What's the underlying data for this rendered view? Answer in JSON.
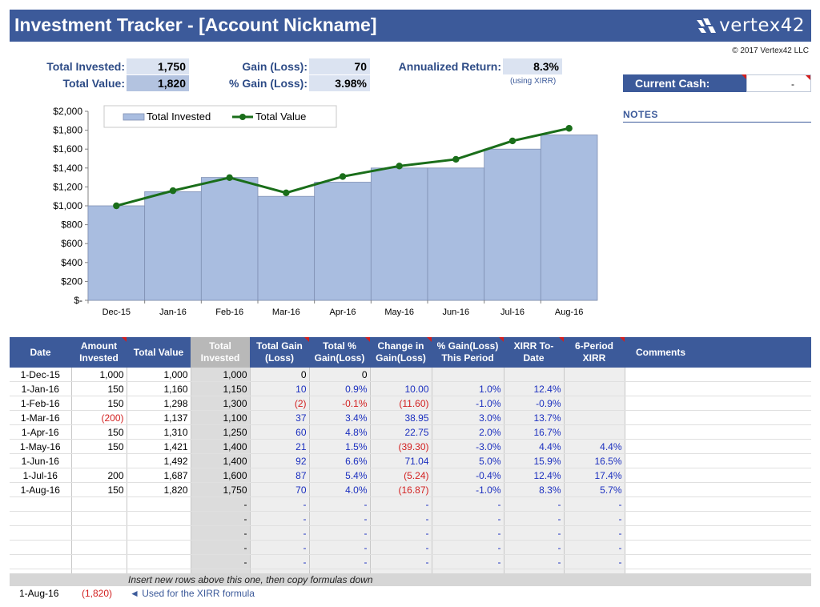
{
  "title": "Investment Tracker - [Account Nickname]",
  "logo": "vertex42",
  "copyright": "© 2017 Vertex42 LLC",
  "summary": {
    "total_invested_label": "Total Invested:",
    "total_invested": "1,750",
    "total_value_label": "Total Value:",
    "total_value": "1,820",
    "gain_label": "Gain (Loss):",
    "gain": "70",
    "pct_gain_label": "% Gain (Loss):",
    "pct_gain": "3.98%",
    "annualized_label": "Annualized Return:",
    "annualized": "8.3%",
    "xirr_note": "(using XIRR)"
  },
  "current_cash": {
    "label": "Current Cash:",
    "value": "-"
  },
  "notes_label": "NOTES",
  "colors": {
    "banner": "#3c5a9a",
    "bar": "#a9bde0",
    "line": "#1a6e1a",
    "negative": "#d21f1f",
    "calc_text": "#1b2fbf"
  },
  "chart_data": {
    "type": "bar",
    "categories": [
      "Dec-15",
      "Jan-16",
      "Feb-16",
      "Mar-16",
      "Apr-16",
      "May-16",
      "Jun-16",
      "Jul-16",
      "Aug-16"
    ],
    "series": [
      {
        "name": "Total Invested",
        "type": "bar",
        "values": [
          1000,
          1150,
          1300,
          1100,
          1250,
          1400,
          1400,
          1600,
          1750
        ]
      },
      {
        "name": "Total Value",
        "type": "line",
        "values": [
          1000,
          1160,
          1298,
          1137,
          1310,
          1421,
          1492,
          1687,
          1820
        ]
      }
    ],
    "ylim": [
      0,
      2000
    ],
    "yticks": [
      "$-",
      "$200",
      "$400",
      "$600",
      "$800",
      "$1,000",
      "$1,200",
      "$1,400",
      "$1,600",
      "$1,800",
      "$2,000"
    ],
    "legend": "top",
    "grid": false
  },
  "table": {
    "headers": [
      "Date",
      "Amount Invested",
      "Total Value",
      "Total Invested",
      "Total Gain (Loss)",
      "Total % Gain(Loss)",
      "Change in Gain(Loss)",
      "% Gain(Loss) This Period",
      "XIRR To-Date",
      "6-Period XIRR",
      "Comments"
    ],
    "rows": [
      [
        "1-Dec-15",
        "1,000",
        "1,000",
        "1,000",
        "0",
        "0",
        "",
        "",
        "",
        "",
        ""
      ],
      [
        "1-Jan-16",
        "150",
        "1,160",
        "1,150",
        "10",
        "0.9%",
        "10.00",
        "1.0%",
        "12.4%",
        "",
        ""
      ],
      [
        "1-Feb-16",
        "150",
        "1,298",
        "1,300",
        "(2)",
        "-0.1%",
        "(11.60)",
        "-1.0%",
        "-0.9%",
        "",
        ""
      ],
      [
        "1-Mar-16",
        "(200)",
        "1,137",
        "1,100",
        "37",
        "3.4%",
        "38.95",
        "3.0%",
        "13.7%",
        "",
        ""
      ],
      [
        "1-Apr-16",
        "150",
        "1,310",
        "1,250",
        "60",
        "4.8%",
        "22.75",
        "2.0%",
        "16.7%",
        "",
        ""
      ],
      [
        "1-May-16",
        "150",
        "1,421",
        "1,400",
        "21",
        "1.5%",
        "(39.30)",
        "-3.0%",
        "4.4%",
        "4.4%",
        ""
      ],
      [
        "1-Jun-16",
        "",
        "1,492",
        "1,400",
        "92",
        "6.6%",
        "71.04",
        "5.0%",
        "15.9%",
        "16.5%",
        ""
      ],
      [
        "1-Jul-16",
        "200",
        "1,687",
        "1,600",
        "87",
        "5.4%",
        "(5.24)",
        "-0.4%",
        "12.4%",
        "17.4%",
        ""
      ],
      [
        "1-Aug-16",
        "150",
        "1,820",
        "1,750",
        "70",
        "4.0%",
        "(16.87)",
        "-1.0%",
        "8.3%",
        "5.7%",
        ""
      ],
      [
        "",
        "",
        "",
        "-",
        "-",
        "-",
        "-",
        "-",
        "-",
        "-",
        ""
      ],
      [
        "",
        "",
        "",
        "-",
        "-",
        "-",
        "-",
        "-",
        "-",
        "-",
        ""
      ],
      [
        "",
        "",
        "",
        "-",
        "-",
        "-",
        "-",
        "-",
        "-",
        "-",
        ""
      ],
      [
        "",
        "",
        "",
        "-",
        "-",
        "-",
        "-",
        "-",
        "-",
        "-",
        ""
      ],
      [
        "",
        "",
        "",
        "-",
        "-",
        "-",
        "-",
        "-",
        "-",
        "-",
        ""
      ],
      [
        "",
        "",
        "",
        "-",
        "-",
        "-",
        "-",
        "-",
        "-",
        "-",
        ""
      ]
    ],
    "footnote": "Insert new rows above this one, then copy formulas down"
  },
  "bottom": {
    "date": "1-Aug-16",
    "value": "(1,820)",
    "note": "◄ Used for the XIRR formula"
  }
}
